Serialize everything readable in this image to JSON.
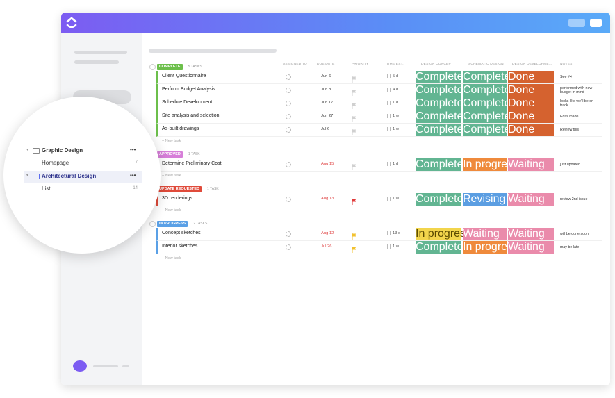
{
  "sidebar": {
    "items": [
      {
        "label": "Graphic Design",
        "menu": "•••"
      },
      {
        "label": "Homepage",
        "count": "7"
      },
      {
        "label": "Architectural Design",
        "menu": "•••"
      },
      {
        "label": "List",
        "count": "14"
      }
    ]
  },
  "table": {
    "columns": [
      "ASSIGNED TO",
      "DUE DATE",
      "PRIORITY",
      "TIME EST.",
      "DESIGN CONCEPT",
      "SCHEMATIC DESIGN",
      "DESIGN DEVELOPME...",
      "NOTES"
    ],
    "groups": [
      {
        "status": "COMPLETE",
        "color": "#6cbf4b",
        "count": "5 TASKS",
        "new_task": "+ New task",
        "rows": [
          {
            "name": "Client Questionnaire",
            "due": "Jun 6",
            "due_color": "#333",
            "flag": "#d0d0d0",
            "time": "5 d",
            "cells": [
              {
                "text": "Complete",
                "color": "#62b592"
              },
              {
                "text": "Complete",
                "color": "#62b592"
              },
              {
                "text": "Done",
                "color": "#d5622f"
              }
            ],
            "notes": "See #4"
          },
          {
            "name": "Perform Budget Analysis",
            "due": "Jun 8",
            "due_color": "#333",
            "flag": "#d0d0d0",
            "time": "4 d",
            "cells": [
              {
                "text": "Complete",
                "color": "#62b592"
              },
              {
                "text": "Complete",
                "color": "#62b592"
              },
              {
                "text": "Done",
                "color": "#d5622f"
              }
            ],
            "notes": "performed with new budget in mind"
          },
          {
            "name": "Schedule Development",
            "due": "Jun 17",
            "due_color": "#333",
            "flag": "#d0d0d0",
            "time": "1 d",
            "cells": [
              {
                "text": "Complete",
                "color": "#62b592"
              },
              {
                "text": "Complete",
                "color": "#62b592"
              },
              {
                "text": "Done",
                "color": "#d5622f"
              }
            ],
            "notes": "looks like we'll be on track"
          },
          {
            "name": "Site analysis and selection",
            "due": "Jun 27",
            "due_color": "#333",
            "flag": "#d0d0d0",
            "time": "1 w",
            "cells": [
              {
                "text": "Complete",
                "color": "#62b592"
              },
              {
                "text": "Complete",
                "color": "#62b592"
              },
              {
                "text": "Done",
                "color": "#d5622f"
              }
            ],
            "notes": "Edits made"
          },
          {
            "name": "As-built drawings",
            "due": "Jul 6",
            "due_color": "#333",
            "flag": "#d0d0d0",
            "time": "1 w",
            "cells": [
              {
                "text": "Complete",
                "color": "#62b592"
              },
              {
                "text": "Complete",
                "color": "#62b592"
              },
              {
                "text": "Done",
                "color": "#d5622f"
              }
            ],
            "notes": "Review this"
          }
        ]
      },
      {
        "status": "APPROVED",
        "color": "#d77fd9",
        "count": "1 TASK",
        "new_task": "+ New task",
        "rows": [
          {
            "name": "Determine Preliminary Cost",
            "due": "Aug 15",
            "due_color": "#e04545",
            "flag": "#d0d0d0",
            "time": "1 d",
            "cells": [
              {
                "text": "Complete",
                "color": "#62b592"
              },
              {
                "text": "In progress",
                "color": "#ef8a3c"
              },
              {
                "text": "Waiting",
                "color": "#ea8bab"
              }
            ],
            "notes": "just updated"
          }
        ]
      },
      {
        "status": "UPDATE REQUESTED",
        "color": "#e04b3b",
        "count": "1 TASK",
        "new_task": "+ New task",
        "rows": [
          {
            "name": "3D renderings",
            "due": "Aug 13",
            "due_color": "#e04545",
            "flag": "#e03b3b",
            "time": "1 w",
            "cells": [
              {
                "text": "Complete",
                "color": "#62b592"
              },
              {
                "text": "Revising",
                "color": "#5b9ee2"
              },
              {
                "text": "Waiting",
                "color": "#ea8bab"
              }
            ],
            "notes": "review 2nd issue"
          }
        ]
      },
      {
        "status": "IN PROGRESS",
        "color": "#5aa0e6",
        "count": "2 TASKS",
        "new_task": "+ New task",
        "rows": [
          {
            "name": "Concept sketches",
            "due": "Aug 12",
            "due_color": "#e04545",
            "flag": "#f2c12e",
            "time": "13 d",
            "cells": [
              {
                "text": "In progress",
                "color": "#f2d54c"
              },
              {
                "text": "Waiting",
                "color": "#ea8bab"
              },
              {
                "text": "Waiting",
                "color": "#ea8bab"
              }
            ],
            "notes": "will be done soon"
          },
          {
            "name": "Interior sketches",
            "due": "Jul 26",
            "due_color": "#e04545",
            "flag": "#f2c12e",
            "time": "1 w",
            "cells": [
              {
                "text": "Complete",
                "color": "#62b592"
              },
              {
                "text": "In progress",
                "color": "#ef8a3c"
              },
              {
                "text": "Waiting",
                "color": "#ea8bab"
              }
            ],
            "notes": "may be late"
          }
        ]
      }
    ]
  }
}
